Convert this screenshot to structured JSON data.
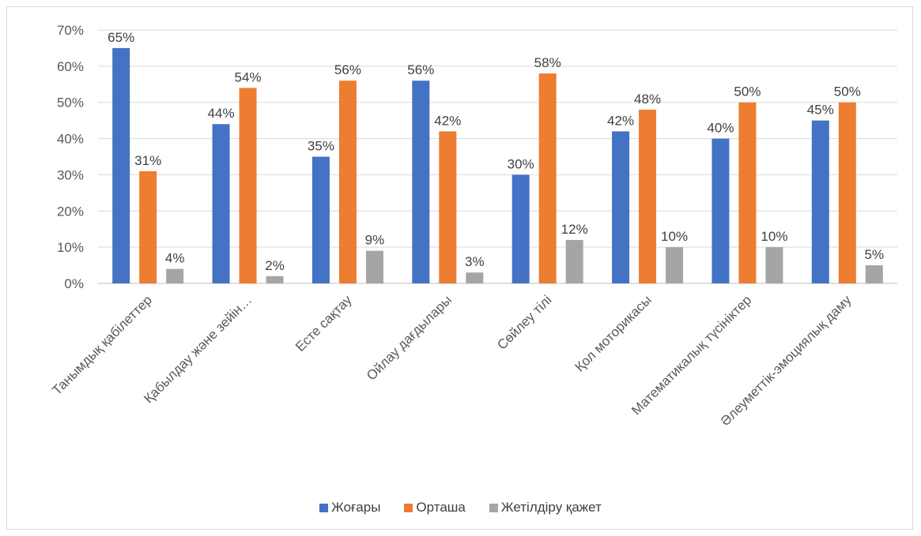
{
  "chart_data": {
    "type": "bar",
    "title": "",
    "xlabel": "",
    "ylabel": "",
    "ylim": [
      0,
      70
    ],
    "yticks": [
      "0%",
      "10%",
      "20%",
      "30%",
      "40%",
      "50%",
      "60%",
      "70%"
    ],
    "grid": true,
    "legend_position": "bottom",
    "categories": [
      "Танымдық қабілеттер",
      "Қабылдау және зейін…",
      "Есте сақтау",
      "Ойлау дағдылары",
      "Сөйлеу тілі",
      "Қол моторикасы",
      "Математикалық түсініктер",
      "Әлеуметтік-эмоциялық даму"
    ],
    "series": [
      {
        "name": "Жоғары",
        "color": "#4472C4",
        "values": [
          65,
          44,
          35,
          56,
          30,
          42,
          40,
          45
        ],
        "labels": [
          "65%",
          "44%",
          "35%",
          "56%",
          "30%",
          "42%",
          "40%",
          "45%"
        ]
      },
      {
        "name": "Орташа",
        "color": "#ED7D31",
        "values": [
          31,
          54,
          56,
          42,
          58,
          48,
          50,
          50
        ],
        "labels": [
          "31%",
          "54%",
          "56%",
          "42%",
          "58%",
          "48%",
          "50%",
          "50%"
        ]
      },
      {
        "name": "Жетілдіру қажет",
        "color": "#A5A5A5",
        "values": [
          4,
          2,
          9,
          3,
          12,
          10,
          10,
          5
        ],
        "labels": [
          "4%",
          "2%",
          "9%",
          "3%",
          "12%",
          "10%",
          "10%",
          "5%"
        ]
      }
    ]
  },
  "legend": {
    "items": [
      {
        "label": "Жоғары",
        "color": "#4472C4"
      },
      {
        "label": "Орташа",
        "color": "#ED7D31"
      },
      {
        "label": "Жетілдіру қажет",
        "color": "#A5A5A5"
      }
    ]
  }
}
